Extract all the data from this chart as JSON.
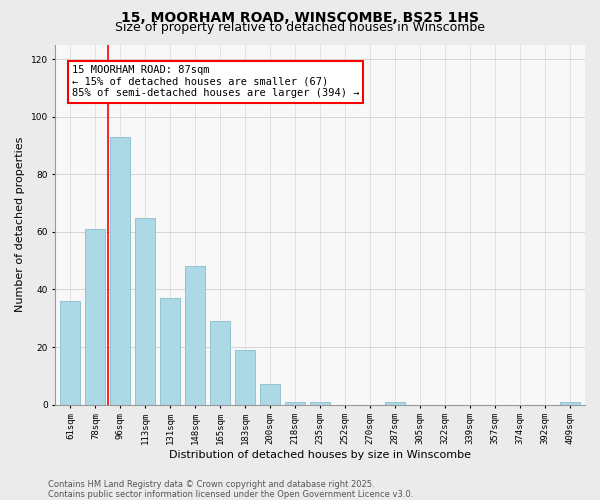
{
  "title_line1": "15, MOORHAM ROAD, WINSCOMBE, BS25 1HS",
  "title_line2": "Size of property relative to detached houses in Winscombe",
  "xlabel": "Distribution of detached houses by size in Winscombe",
  "ylabel": "Number of detached properties",
  "categories": [
    "61sqm",
    "78sqm",
    "96sqm",
    "113sqm",
    "131sqm",
    "148sqm",
    "165sqm",
    "183sqm",
    "200sqm",
    "218sqm",
    "235sqm",
    "252sqm",
    "270sqm",
    "287sqm",
    "305sqm",
    "322sqm",
    "339sqm",
    "357sqm",
    "374sqm",
    "392sqm",
    "409sqm"
  ],
  "values": [
    36,
    61,
    93,
    65,
    37,
    48,
    29,
    19,
    7,
    1,
    1,
    0,
    0,
    1,
    0,
    0,
    0,
    0,
    0,
    0,
    1
  ],
  "bar_color": "#add8e6",
  "bar_edge_color": "#8bbccc",
  "annotation_box_text": "15 MOORHAM ROAD: 87sqm\n← 15% of detached houses are smaller (67)\n85% of semi-detached houses are larger (394) →",
  "vline_x": 1.5,
  "ylim": [
    0,
    125
  ],
  "yticks": [
    0,
    20,
    40,
    60,
    80,
    100,
    120
  ],
  "footer_line1": "Contains HM Land Registry data © Crown copyright and database right 2025.",
  "footer_line2": "Contains public sector information licensed under the Open Government Licence v3.0.",
  "bg_color": "#ebebeb",
  "plot_bg_color": "#f8f8f8",
  "grid_color": "#d0d0d0",
  "title_fontsize": 10,
  "subtitle_fontsize": 9,
  "annotation_fontsize": 7.5,
  "axis_label_fontsize": 8,
  "tick_fontsize": 6.5,
  "footer_fontsize": 6
}
